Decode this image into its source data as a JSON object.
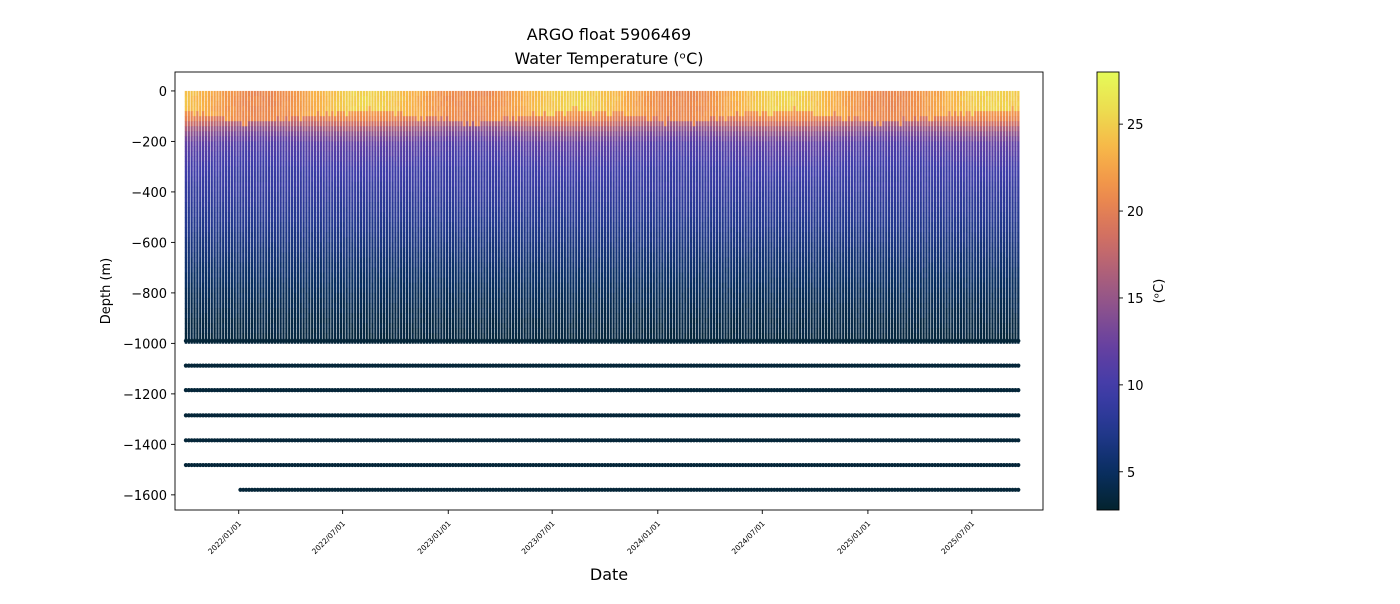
{
  "chart_data": {
    "type": "scatter",
    "title_line1": "ARGO float 5906469",
    "title_line2": "Water Temperature (ᵒC)",
    "xlabel": "Date",
    "ylabel": "Depth (m)",
    "colorbar_label": "(ᵒC)",
    "x_range": [
      "2021-09-12",
      "2025-11-02"
    ],
    "ylim": [
      -1660,
      75
    ],
    "x_tick_labels": [
      "2022/01/01",
      "2022/07/01",
      "2023/01/01",
      "2023/07/01",
      "2024/01/01",
      "2024/07/01",
      "2025/01/01",
      "2025/07/01"
    ],
    "x_tick_dates": [
      "2022-01-01",
      "2022-07-01",
      "2023-01-01",
      "2023-07-01",
      "2024-01-01",
      "2024-07-01",
      "2025-01-01",
      "2025-07-01"
    ],
    "y_ticks": [
      0,
      -200,
      -400,
      -600,
      -800,
      -1000,
      -1200,
      -1400,
      -1600
    ],
    "y_tick_labels": [
      "0",
      "−200",
      "−400",
      "−600",
      "−800",
      "−1000",
      "−1200",
      "−1400",
      "−1600"
    ],
    "colorbar_range": [
      2.8,
      28
    ],
    "colorbar_ticks": [
      5,
      10,
      15,
      20,
      25
    ],
    "colorbar_tick_labels": [
      "5",
      "10",
      "15",
      "20",
      "25"
    ],
    "colormap": "thermal",
    "colormap_stops": [
      "#04232e",
      "#092f62",
      "#23388e",
      "#3f3ca9",
      "#623fa2",
      "#88508f",
      "#b06178",
      "#d6725f",
      "#ef8e4b",
      "#f8b348",
      "#eddb4f",
      "#e5fb58"
    ],
    "profile_start": "2021-10-01",
    "profile_end": "2025-10-12",
    "profile_interval_days": 5,
    "profile_count": 291,
    "deep_sample_depths": [
      -990,
      -1088,
      -1185,
      -1285,
      -1384,
      -1482,
      -1580
    ],
    "deep_sample_temperature": 3.3,
    "deepest_level_start": "2022-01-01",
    "temperature_profile": {
      "depths": [
        0,
        -50,
        -100,
        -150,
        -200,
        -300,
        -400,
        -500,
        -600,
        -700,
        -800,
        -900,
        -1000
      ],
      "temperatures": [
        22.5,
        21.5,
        19.5,
        14.5,
        11.5,
        9.5,
        8.5,
        7.5,
        6.5,
        5.5,
        4.6,
        3.9,
        3.4
      ]
    }
  }
}
